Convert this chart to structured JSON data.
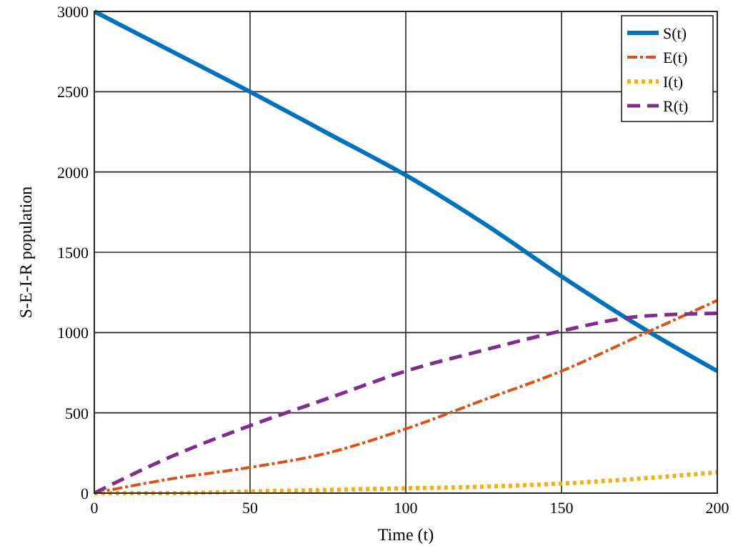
{
  "chart_data": {
    "type": "line",
    "xlabel": "Time (t)",
    "ylabel": "S-E-I-R population",
    "x": [
      0,
      25,
      50,
      75,
      100,
      125,
      150,
      175,
      200
    ],
    "series": [
      {
        "name": "S(t)",
        "color": "#0072bd",
        "line_style": "solid",
        "values": [
          3000,
          2750,
          2500,
          2240,
          1980,
          1680,
          1350,
          1040,
          760
        ]
      },
      {
        "name": "E(t)",
        "color": "#d95319",
        "line_style": "dashdot",
        "values": [
          0,
          90,
          160,
          250,
          400,
          580,
          760,
          980,
          1200
        ]
      },
      {
        "name": "I(t)",
        "color": "#edb120",
        "line_style": "dotted",
        "values": [
          0,
          0,
          10,
          20,
          30,
          40,
          60,
          90,
          130
        ]
      },
      {
        "name": "R(t)",
        "color": "#7e2f8e",
        "line_style": "dashed",
        "values": [
          0,
          230,
          420,
          590,
          760,
          890,
          1010,
          1100,
          1120
        ]
      }
    ],
    "xlim": [
      0,
      200
    ],
    "xticks": [
      0,
      50,
      100,
      150,
      200
    ],
    "ylim": [
      0,
      3000
    ],
    "yticks": [
      0,
      500,
      1000,
      1500,
      2000,
      2500,
      3000
    ],
    "grid": true,
    "legend": "top right",
    "marker": "none"
  }
}
